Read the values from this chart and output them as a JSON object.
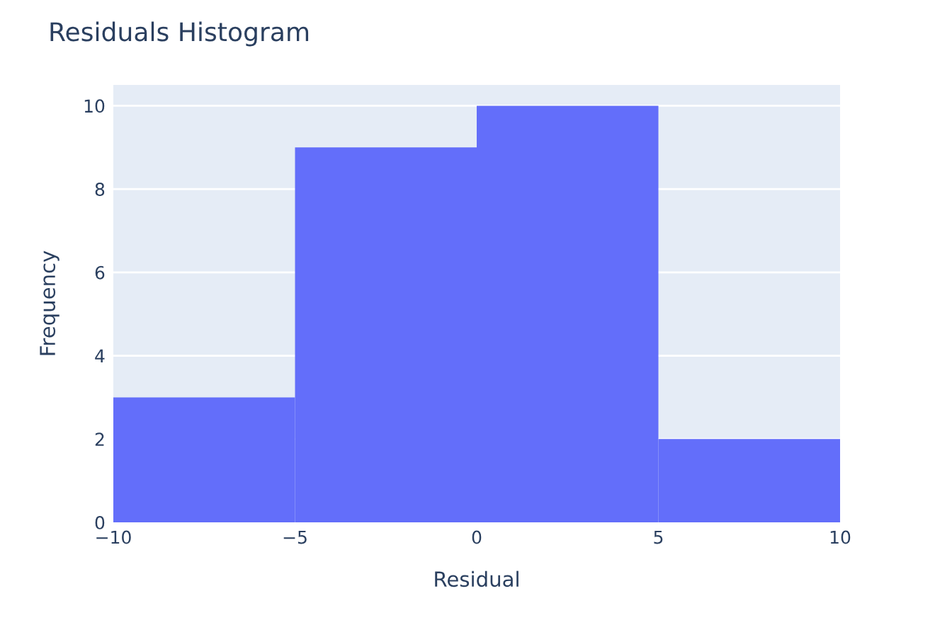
{
  "chart_data": {
    "type": "histogram",
    "title": "Residuals Histogram",
    "xlabel": "Residual",
    "ylabel": "Frequency",
    "bins": [
      -10,
      -5,
      0,
      5,
      10
    ],
    "values": [
      3,
      9,
      10,
      2
    ],
    "color": "#636efa",
    "xlim": [
      -10,
      10
    ],
    "xticks": [
      {
        "value": -10,
        "label": "−10"
      },
      {
        "value": -5,
        "label": "−5"
      },
      0,
      5,
      10
    ],
    "ylim": [
      0,
      10.5
    ],
    "yticks": [
      0,
      2,
      4,
      6,
      8,
      10
    ],
    "grid": "y"
  }
}
